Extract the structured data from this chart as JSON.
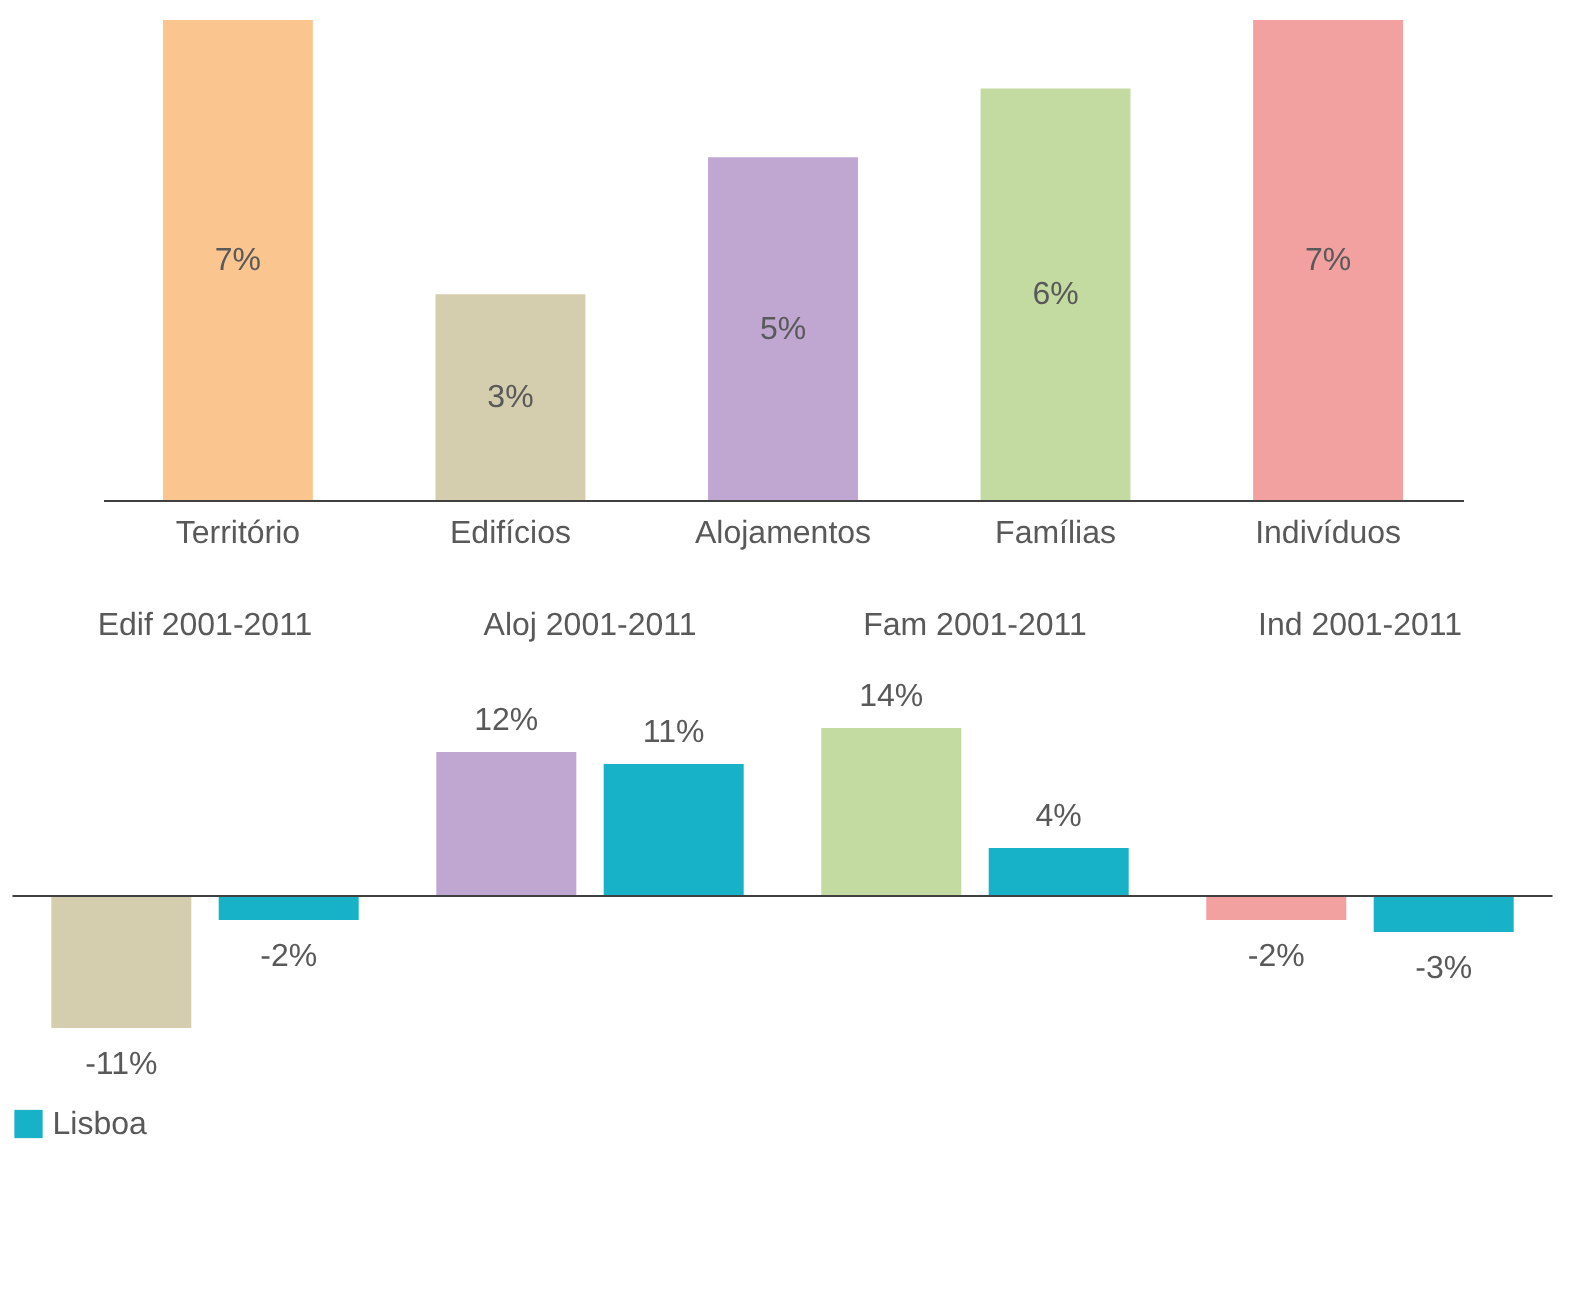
{
  "chart_data": [
    {
      "type": "bar",
      "categories": [
        "Território",
        "Edifícios",
        "Alojamentos",
        "Famílias",
        "Indivíduos"
      ],
      "values": [
        7,
        3,
        5,
        6,
        7
      ],
      "colors": [
        "#fbc590",
        "#d4ceae",
        "#bfa7d2",
        "#c3dba0",
        "#f2a0a0"
      ],
      "value_labels": [
        "7%",
        "3%",
        "5%",
        "6%",
        "7%"
      ]
    },
    {
      "type": "bar",
      "categories": [
        "Edif 2001-2011",
        "Aloj 2001-2011",
        "Fam 2001-2011",
        "Ind 2001-2011"
      ],
      "legend": "bottom",
      "series": [
        {
          "colors": [
            "#d4ceae",
            "#bfa7d2",
            "#c3dba0",
            "#f2a0a0"
          ],
          "values": [
            -11,
            12,
            14,
            -2
          ],
          "value_labels": [
            "-11%",
            "12%",
            "14%",
            "-2%"
          ]
        },
        {
          "name": "Lisboa",
          "color": "#17b2c8",
          "values": [
            -2,
            11,
            4,
            -3
          ],
          "value_labels": [
            "-2%",
            "11%",
            "4%",
            "-3%"
          ]
        }
      ]
    }
  ]
}
